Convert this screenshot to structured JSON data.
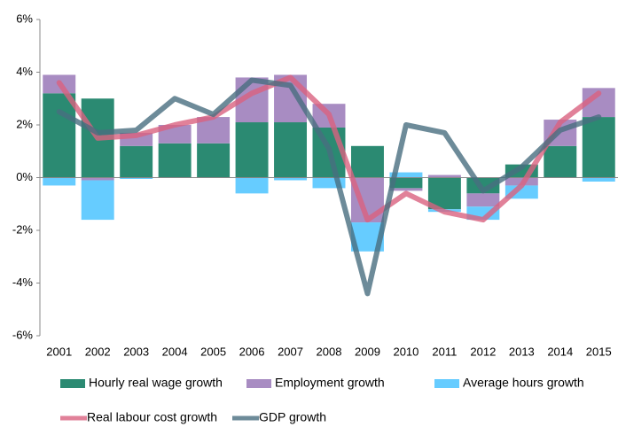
{
  "chart_data": {
    "type": "bar",
    "stacked": true,
    "grid": false,
    "categories": [
      "2001",
      "2002",
      "2003",
      "2004",
      "2005",
      "2006",
      "2007",
      "2008",
      "2009",
      "2010",
      "2011",
      "2012",
      "2013",
      "2014",
      "2015"
    ],
    "ylim": [
      -6,
      6
    ],
    "yticks": [
      {
        "value": 6,
        "label": "6%"
      },
      {
        "value": 4,
        "label": "4%"
      },
      {
        "value": 2,
        "label": "2%"
      },
      {
        "value": 0,
        "label": "0%"
      },
      {
        "value": -2,
        "label": "-2%"
      },
      {
        "value": -4,
        "label": "-4%"
      },
      {
        "value": -6,
        "label": "-6%"
      }
    ],
    "series": [
      {
        "name": "Hourly real wage growth",
        "type": "bar",
        "color": "#2b8a72",
        "values": [
          3.2,
          3.0,
          1.2,
          1.3,
          1.3,
          2.1,
          2.1,
          1.9,
          1.2,
          -0.4,
          -1.2,
          -0.6,
          0.5,
          1.2,
          2.3
        ]
      },
      {
        "name": "Employment growth",
        "type": "bar",
        "color": "#a88cc2",
        "values": [
          0.7,
          -0.1,
          0.5,
          0.7,
          1.0,
          1.7,
          1.8,
          0.9,
          -1.7,
          -0.1,
          0.1,
          -0.5,
          -0.3,
          1.0,
          1.1
        ]
      },
      {
        "name": "Average hours growth",
        "type": "bar",
        "color": "#66ccff",
        "values": [
          -0.3,
          -1.5,
          -0.05,
          0,
          0,
          -0.6,
          -0.1,
          -0.4,
          -1.1,
          0.2,
          -0.1,
          -0.5,
          -0.5,
          0,
          -0.15
        ]
      },
      {
        "name": "Real labour cost growth",
        "type": "line",
        "color": "#d9627f",
        "values": [
          3.6,
          1.5,
          1.6,
          2.0,
          2.3,
          3.2,
          3.8,
          2.4,
          -1.6,
          -0.6,
          -1.3,
          -1.6,
          -0.3,
          2.1,
          3.2
        ]
      },
      {
        "name": "GDP growth",
        "type": "line",
        "color": "#496e7f",
        "values": [
          2.5,
          1.7,
          1.8,
          3.0,
          2.4,
          3.7,
          3.5,
          1.1,
          -4.4,
          2.0,
          1.7,
          -0.5,
          0.4,
          1.8,
          2.3
        ]
      }
    ]
  }
}
